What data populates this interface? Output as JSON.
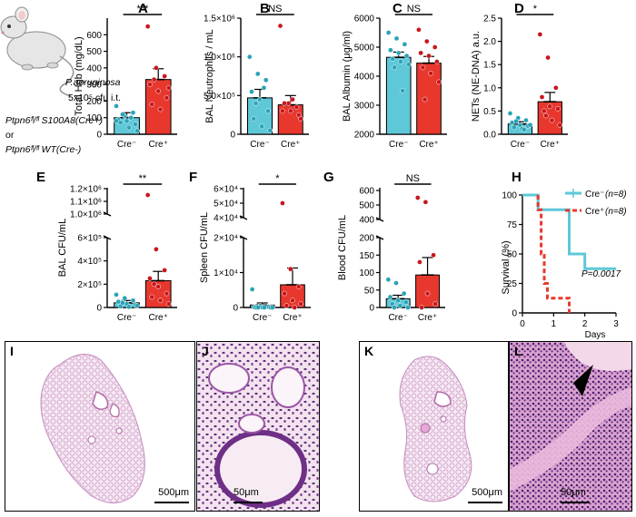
{
  "colors": {
    "cre_minus": "#5ec8d8",
    "cre_minus_dot": "#2aa3b8",
    "cre_plus": "#e8382e",
    "cre_plus_dot": "#c9161b",
    "stain_light": "#efd6e9",
    "stain_dark": "#a84d9c"
  },
  "mouse_label": {
    "pathogen": "P.aeruginosa",
    "dose": "5x10⁵ cfu i.t.",
    "genotype_a": "Ptpn6ᶠˡ/ᶠˡ S100A8(Cre+)",
    "or_text": "or",
    "genotype_b": "Ptpn6ᶠˡ/ᶠˡ WT(Cre-)"
  },
  "chart_data": [
    {
      "panel": "A",
      "type": "bar",
      "categories": [
        "Cre⁻",
        "Cre⁺"
      ],
      "values": [
        100,
        330
      ],
      "sem": [
        30,
        65
      ],
      "points": [
        [
          170,
          110,
          130,
          90,
          80,
          60,
          70,
          40,
          20,
          120,
          100,
          80
        ],
        [
          650,
          400,
          350,
          300,
          260,
          220,
          180,
          150,
          280,
          330
        ]
      ],
      "ylabel": "Total Hgb (mg/dL)",
      "ylim": [
        0,
        700
      ],
      "yticks": [
        0,
        100,
        200,
        300,
        400,
        500,
        600
      ],
      "yticklabels": [
        "0",
        "100",
        "200",
        "300",
        "400",
        "500",
        "600"
      ],
      "significance": "***"
    },
    {
      "panel": "B",
      "type": "bar",
      "categories": [
        "Cre⁻",
        "Cre⁺"
      ],
      "values": [
        470000,
        380000
      ],
      "sem": [
        110000,
        120000
      ],
      "points": [
        [
          1000000,
          780000,
          700000,
          550000,
          450000,
          300000,
          200000,
          100000,
          50000,
          400000,
          600000
        ],
        [
          1400000,
          400000,
          350000,
          300000,
          300000,
          250000,
          400000,
          450000,
          200000
        ]
      ],
      "ylabel": "BAL Neutrophils / mL",
      "ylim": [
        0,
        1500000
      ],
      "yticks": [
        0,
        500000,
        1000000,
        1500000
      ],
      "yticklabels": [
        "0",
        "5.0×10⁵",
        "1.0×10⁶",
        "1.5×10⁶"
      ],
      "significance": "NS"
    },
    {
      "panel": "C",
      "type": "bar",
      "categories": [
        "Cre⁻",
        "Cre⁺"
      ],
      "values": [
        4650,
        4450
      ],
      "sem": [
        180,
        230
      ],
      "points": [
        [
          5500,
          5300,
          5100,
          4900,
          4800,
          4700,
          4600,
          4500,
          4400,
          4300,
          3500
        ],
        [
          5600,
          5200,
          5000,
          4800,
          4700,
          4500,
          4300,
          4100,
          3800,
          3200
        ]
      ],
      "ylabel": "BAL Albumin (μg/ml)",
      "ylim": [
        2000,
        6000
      ],
      "yticks": [
        2000,
        3000,
        4000,
        5000,
        6000
      ],
      "yticklabels": [
        "2000",
        "3000",
        "4000",
        "5000",
        "6000"
      ],
      "significance": "NS"
    },
    {
      "panel": "D",
      "type": "bar",
      "categories": [
        "Cre⁻",
        "Cre⁺"
      ],
      "values": [
        0.22,
        0.7
      ],
      "sem": [
        0.05,
        0.2
      ],
      "points": [
        [
          0.45,
          0.35,
          0.3,
          0.25,
          0.2,
          0.18,
          0.15,
          0.12,
          0.2,
          0.28,
          0.1
        ],
        [
          2.15,
          1.65,
          1.0,
          0.8,
          0.6,
          0.55,
          0.5,
          0.3,
          0.2,
          0.4
        ]
      ],
      "ylabel": "NETs (NE-DNA) a.u.",
      "ylim": [
        0,
        2.5
      ],
      "yticks": [
        0,
        0.5,
        1.0,
        1.5,
        2.0,
        2.5
      ],
      "yticklabels": [
        "0.0",
        "0.5",
        "1.0",
        "1.5",
        "2.0",
        "2.5"
      ],
      "significance": "*"
    },
    {
      "panel": "E",
      "type": "bar",
      "categories": [
        "Cre⁻",
        "Cre⁺"
      ],
      "values": [
        40000,
        230000
      ],
      "sem": [
        20000,
        80000
      ],
      "points": [
        [
          110000,
          80000,
          60000,
          50000,
          30000,
          20000,
          10000,
          5000,
          15000,
          40000
        ],
        [
          1150000,
          500000,
          320000,
          250000,
          180000,
          120000,
          90000,
          60000,
          30000,
          200000
        ]
      ],
      "ylabel": "BAL CFU/mL",
      "yticklabels": [
        "0",
        "2×10⁵",
        "4×10⁵",
        "6×10⁵",
        "1.0×10⁶",
        "1.1×10⁶",
        "1.2×10⁶"
      ],
      "significance": "**"
    },
    {
      "panel": "F",
      "type": "bar",
      "categories": [
        "Cre⁻",
        "Cre⁺"
      ],
      "values": [
        700,
        6500
      ],
      "sem": [
        600,
        4800
      ],
      "points": [
        [
          5200,
          500,
          200,
          100,
          50,
          0,
          0,
          0,
          0,
          0
        ],
        [
          50000,
          11000,
          6000,
          4000,
          2000,
          1000,
          500,
          0
        ]
      ],
      "ylabel": "Spleen CFU/mL",
      "yticklabels": [
        "0",
        "1×10⁴",
        "2×10⁴",
        "4×10⁴",
        "5×10⁴",
        "6×10⁴"
      ],
      "significance": "*"
    },
    {
      "panel": "G",
      "type": "bar",
      "categories": [
        "Cre⁻",
        "Cre⁺"
      ],
      "values": [
        25,
        93
      ],
      "sem": [
        10,
        50
      ],
      "points": [
        [
          80,
          70,
          40,
          30,
          20,
          15,
          10,
          5,
          0,
          0
        ],
        [
          550,
          520,
          150,
          130,
          40,
          10,
          0
        ]
      ],
      "ylabel": "Blood CFU/mL",
      "yticklabels": [
        "0",
        "50",
        "100",
        "150",
        "200",
        "400",
        "500",
        "600"
      ],
      "significance": "NS"
    },
    {
      "panel": "H",
      "type": "line",
      "xlabel": "Days",
      "ylabel": "Survival (%)",
      "xlim": [
        0,
        3
      ],
      "ylim": [
        0,
        100
      ],
      "xticks": [
        "0",
        "1",
        "2",
        "3"
      ],
      "yticks": [
        "0",
        "25",
        "50",
        "75",
        "100"
      ],
      "series": [
        {
          "name": "Cre⁻ (n=8)",
          "x": [
            0,
            0.5,
            0.5,
            1.5,
            1.5,
            2.0,
            2.0,
            3.0
          ],
          "y": [
            100,
            100,
            87.5,
            87.5,
            50,
            50,
            37.5,
            37.5
          ]
        },
        {
          "name": "Cre⁺ (n=8)",
          "x": [
            0.5,
            0.5,
            0.6,
            0.6,
            0.7,
            0.7,
            0.8,
            0.8,
            1.0,
            1.0,
            1.5,
            1.5
          ],
          "y": [
            100,
            87.5,
            87.5,
            50,
            50,
            25,
            25,
            12.5,
            12.5,
            12.5,
            12.5,
            0
          ]
        }
      ],
      "annotation": "P=0.0017"
    }
  ],
  "legend_h": {
    "minus_label": "Cre⁻",
    "minus_n": "(n=8)",
    "plus_label": "Cre⁺",
    "plus_n": "(n=8)",
    "pvalue": "P=0.0017"
  },
  "histology": [
    {
      "letter": "I",
      "scale": "500μm"
    },
    {
      "letter": "J",
      "scale": "50μm"
    },
    {
      "letter": "K",
      "scale": "500μm"
    },
    {
      "letter": "L",
      "scale": "50μm"
    }
  ]
}
